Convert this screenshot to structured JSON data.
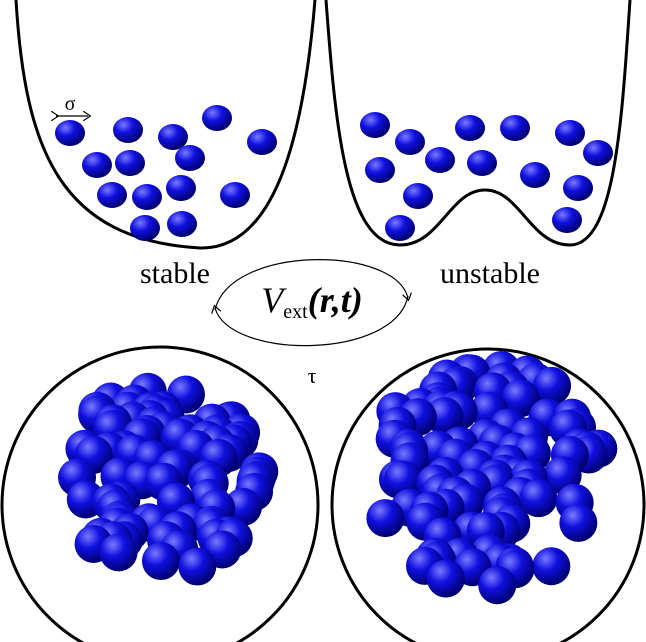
{
  "labels": {
    "sigma": "σ",
    "stable": "stable",
    "unstable": "unstable",
    "potential": {
      "symbol": "V",
      "subscript": "ext",
      "argument": "(r,t)"
    },
    "tau": "τ"
  }
}
